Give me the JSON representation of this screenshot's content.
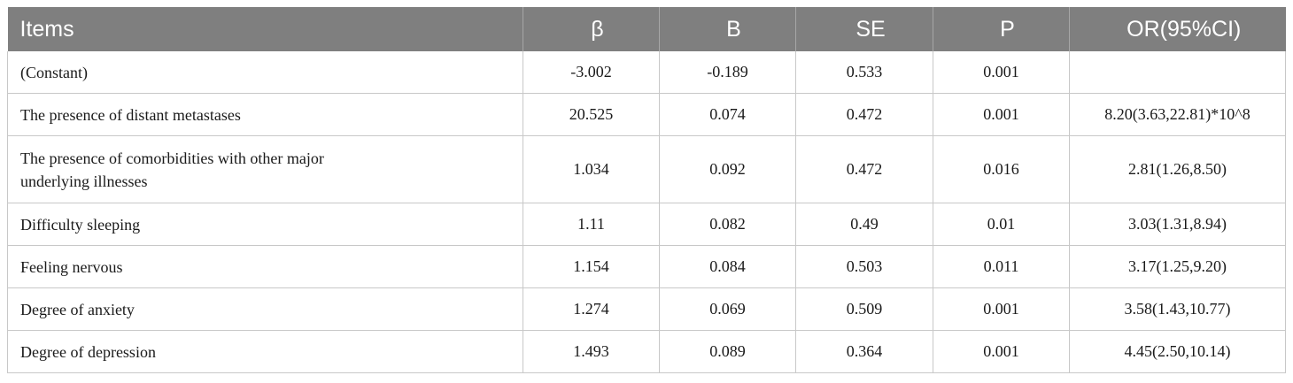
{
  "table": {
    "headers": [
      "Items",
      "β",
      "B",
      "SE",
      "P",
      "OR(95%CI)"
    ],
    "rows": [
      {
        "items": "(Constant)",
        "beta": "-3.002",
        "b": "-0.189",
        "se": "0.533",
        "p": "0.001",
        "or": ""
      },
      {
        "items": "The presence of distant metastases",
        "beta": "20.525",
        "b": "0.074",
        "se": "0.472",
        "p": "0.001",
        "or": "8.20(3.63,22.81)*10^8"
      },
      {
        "items": "The presence of comorbidities with other major underlying illnesses",
        "beta": "1.034",
        "b": "0.092",
        "se": "0.472",
        "p": "0.016",
        "or": "2.81(1.26,8.50)"
      },
      {
        "items": "Difficulty sleeping",
        "beta": "1.11",
        "b": "0.082",
        "se": "0.49",
        "p": "0.01",
        "or": "3.03(1.31,8.94)"
      },
      {
        "items": "Feeling nervous",
        "beta": "1.154",
        "b": "0.084",
        "se": "0.503",
        "p": "0.011",
        "or": "3.17(1.25,9.20)"
      },
      {
        "items": "Degree of anxiety",
        "beta": "1.274",
        "b": "0.069",
        "se": "0.509",
        "p": "0.001",
        "or": "3.58(1.43,10.77)"
      },
      {
        "items": "Degree of depression",
        "beta": "1.493",
        "b": "0.089",
        "se": "0.364",
        "p": "0.001",
        "or": "4.45(2.50,10.14)"
      }
    ]
  }
}
